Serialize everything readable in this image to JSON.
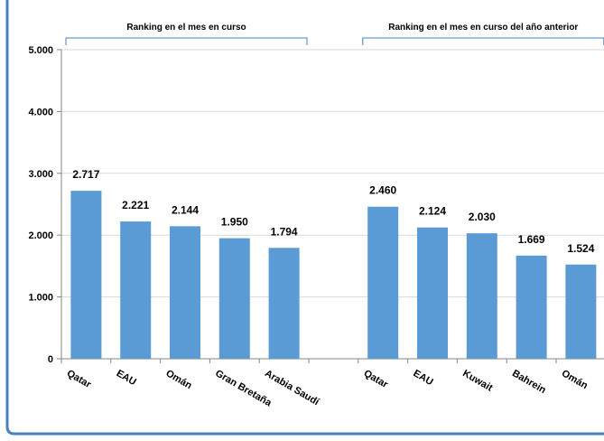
{
  "chart_data": {
    "type": "bar",
    "title": "",
    "xlabel": "",
    "ylabel": "",
    "ylim": [
      0,
      5000
    ],
    "yticks": [
      "0",
      "1.000",
      "2.000",
      "3.000",
      "4.000",
      "5.000"
    ],
    "grid": true,
    "bar_color": "#5b9bd5",
    "frame_color": "#4a7fc0",
    "groups": [
      {
        "label": "Ranking en el mes en curso",
        "categories": [
          "Qatar",
          "EAU",
          "Omán",
          "Gran Bretaña",
          "Arabia Saudí"
        ],
        "values": [
          2717,
          2221,
          2144,
          1950,
          1794
        ],
        "value_labels": [
          "2.717",
          "2.221",
          "2.144",
          "1.950",
          "1.794"
        ]
      },
      {
        "label": "Ranking en el mes en curso del año anterior",
        "categories": [
          "Qatar",
          "EAU",
          "Kuwait",
          "Bahrein",
          "Omán"
        ],
        "values": [
          2460,
          2124,
          2030,
          1669,
          1524
        ],
        "value_labels": [
          "2.460",
          "2.124",
          "2.030",
          "1.669",
          "1.524"
        ]
      }
    ]
  }
}
